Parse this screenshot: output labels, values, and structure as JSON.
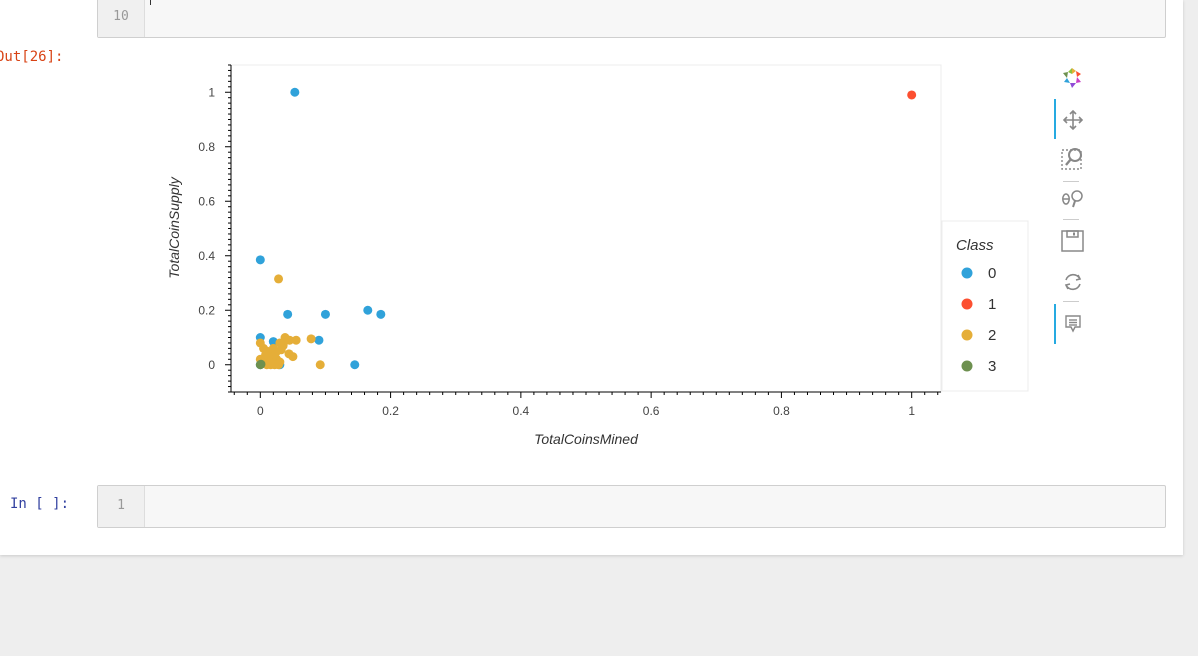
{
  "cells": {
    "prev": {
      "line_number": "10"
    },
    "output": {
      "prompt": "Out[26]:"
    },
    "next": {
      "prompt": "In [ ]:",
      "line_number": "1"
    }
  },
  "toolbar": {
    "tools": [
      "bokeh-logo-icon",
      "pan-icon",
      "box-zoom-icon",
      "wheel-zoom-icon",
      "save-icon",
      "reset-icon",
      "hover-icon"
    ],
    "active_color": "#26aae1"
  },
  "chart_data": {
    "type": "scatter",
    "xlabel": "TotalCoinsMined",
    "ylabel": "TotalCoinSupply",
    "xlim": [
      -0.045,
      1.045
    ],
    "ylim": [
      -0.1,
      1.1
    ],
    "x_ticks": [
      0,
      0.2,
      0.4,
      0.6,
      0.8,
      1
    ],
    "x_tick_labels": [
      "0",
      "0.2",
      "0.4",
      "0.6",
      "0.8",
      "1"
    ],
    "y_ticks": [
      0,
      0.2,
      0.4,
      0.6,
      0.8,
      1
    ],
    "y_tick_labels": [
      "0",
      "0.2",
      "0.4",
      "0.6",
      "0.8",
      "1"
    ],
    "legend_title": "Class",
    "legend_position": "right",
    "grid": false,
    "series": [
      {
        "name": "0",
        "color": "#30a2da",
        "points": [
          [
            0.053,
            1.0
          ],
          [
            0.0,
            0.385
          ],
          [
            0.0,
            0.1
          ],
          [
            0.042,
            0.185
          ],
          [
            0.1,
            0.185
          ],
          [
            0.165,
            0.2
          ],
          [
            0.185,
            0.185
          ],
          [
            0.02,
            0.085
          ],
          [
            0.09,
            0.09
          ],
          [
            0.145,
            0.0
          ],
          [
            0.03,
            0.0
          ],
          [
            0.0,
            0.0
          ],
          [
            0.012,
            0.01
          ]
        ]
      },
      {
        "name": "1",
        "color": "#fc4f30",
        "points": [
          [
            1.0,
            0.99
          ]
        ]
      },
      {
        "name": "2",
        "color": "#e5ae38",
        "points": [
          [
            0.028,
            0.315
          ],
          [
            0.0,
            0.08
          ],
          [
            0.005,
            0.06
          ],
          [
            0.01,
            0.05
          ],
          [
            0.015,
            0.04
          ],
          [
            0.02,
            0.03
          ],
          [
            0.025,
            0.02
          ],
          [
            0.03,
            0.01
          ],
          [
            0.035,
            0.07
          ],
          [
            0.04,
            0.09
          ],
          [
            0.045,
            0.09
          ],
          [
            0.038,
            0.1
          ],
          [
            0.055,
            0.09
          ],
          [
            0.078,
            0.095
          ],
          [
            0.092,
            0.0
          ],
          [
            0.05,
            0.03
          ],
          [
            0.044,
            0.04
          ],
          [
            0.02,
            0.06
          ],
          [
            0.01,
            0.0
          ],
          [
            0.016,
            0.0
          ],
          [
            0.022,
            0.0
          ],
          [
            0.028,
            0.0
          ],
          [
            0.0,
            0.02
          ],
          [
            0.008,
            0.035
          ],
          [
            0.012,
            0.015
          ],
          [
            0.018,
            0.005
          ],
          [
            0.024,
            0.045
          ],
          [
            0.032,
            0.055
          ],
          [
            0.006,
            0.005
          ],
          [
            0.03,
            0.08
          ]
        ]
      },
      {
        "name": "3",
        "color": "#6d904f",
        "points": [
          [
            0.0,
            0.0
          ],
          [
            0.001,
            0.002
          ]
        ]
      }
    ]
  }
}
